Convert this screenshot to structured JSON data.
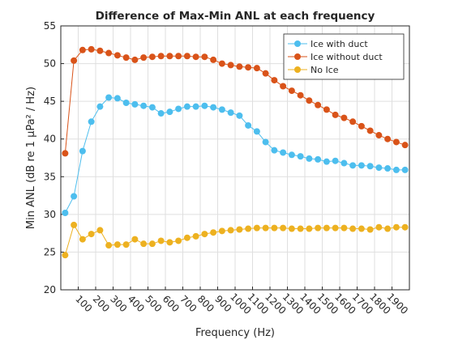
{
  "chart_data": {
    "type": "line",
    "title": "Difference of Max-Min ANL at each frequency",
    "xlabel": "Frequency (Hz)",
    "ylabel": "Min ANL (dB re 1 μPa² / Hz)",
    "x": [
      25,
      75,
      125,
      175,
      225,
      275,
      325,
      375,
      425,
      475,
      525,
      575,
      625,
      675,
      725,
      775,
      825,
      875,
      925,
      975,
      1025,
      1075,
      1125,
      1175,
      1225,
      1275,
      1325,
      1375,
      1425,
      1475,
      1525,
      1575,
      1625,
      1675,
      1725,
      1775,
      1825,
      1875,
      1925,
      1975
    ],
    "series": [
      {
        "name": "Ice with duct",
        "color": "#4dbeee",
        "values": [
          30.2,
          32.4,
          38.4,
          42.3,
          44.3,
          45.5,
          45.4,
          44.8,
          44.6,
          44.4,
          44.2,
          43.4,
          43.6,
          44.0,
          44.3,
          44.3,
          44.4,
          44.2,
          43.9,
          43.5,
          43.1,
          41.8,
          41.0,
          39.6,
          38.5,
          38.2,
          37.9,
          37.7,
          37.4,
          37.3,
          37.0,
          37.1,
          36.8,
          36.5,
          36.5,
          36.4,
          36.2,
          36.1,
          35.9,
          35.9
        ]
      },
      {
        "name": "Ice without duct",
        "color": "#d95319",
        "values": [
          38.1,
          50.4,
          51.8,
          51.9,
          51.7,
          51.4,
          51.1,
          50.8,
          50.5,
          50.8,
          50.9,
          51.0,
          51.0,
          51.0,
          51.0,
          50.9,
          50.9,
          50.5,
          50.0,
          49.8,
          49.6,
          49.5,
          49.4,
          48.7,
          47.8,
          47.0,
          46.4,
          45.8,
          45.1,
          44.5,
          43.9,
          43.2,
          42.8,
          42.3,
          41.7,
          41.1,
          40.5,
          40.0,
          39.6,
          39.2
        ]
      },
      {
        "name": "No Ice",
        "color": "#edb120",
        "values": [
          24.6,
          28.6,
          26.7,
          27.4,
          27.9,
          25.9,
          26.0,
          26.0,
          26.7,
          26.1,
          26.1,
          26.5,
          26.3,
          26.5,
          26.9,
          27.1,
          27.4,
          27.6,
          27.8,
          27.9,
          28.0,
          28.1,
          28.2,
          28.2,
          28.2,
          28.2,
          28.1,
          28.1,
          28.1,
          28.2,
          28.2,
          28.2,
          28.2,
          28.1,
          28.1,
          28.0,
          28.3,
          28.1,
          28.3,
          28.3
        ]
      }
    ],
    "xlim": [
      0,
      2000
    ],
    "xticks": [
      100,
      200,
      300,
      400,
      500,
      600,
      700,
      800,
      900,
      1000,
      1100,
      1200,
      1300,
      1400,
      1500,
      1600,
      1700,
      1800,
      1900
    ],
    "ylim": [
      20,
      55
    ],
    "yticks": [
      20,
      25,
      30,
      35,
      40,
      45,
      50,
      55
    ],
    "grid": true,
    "legend": "northeast"
  }
}
